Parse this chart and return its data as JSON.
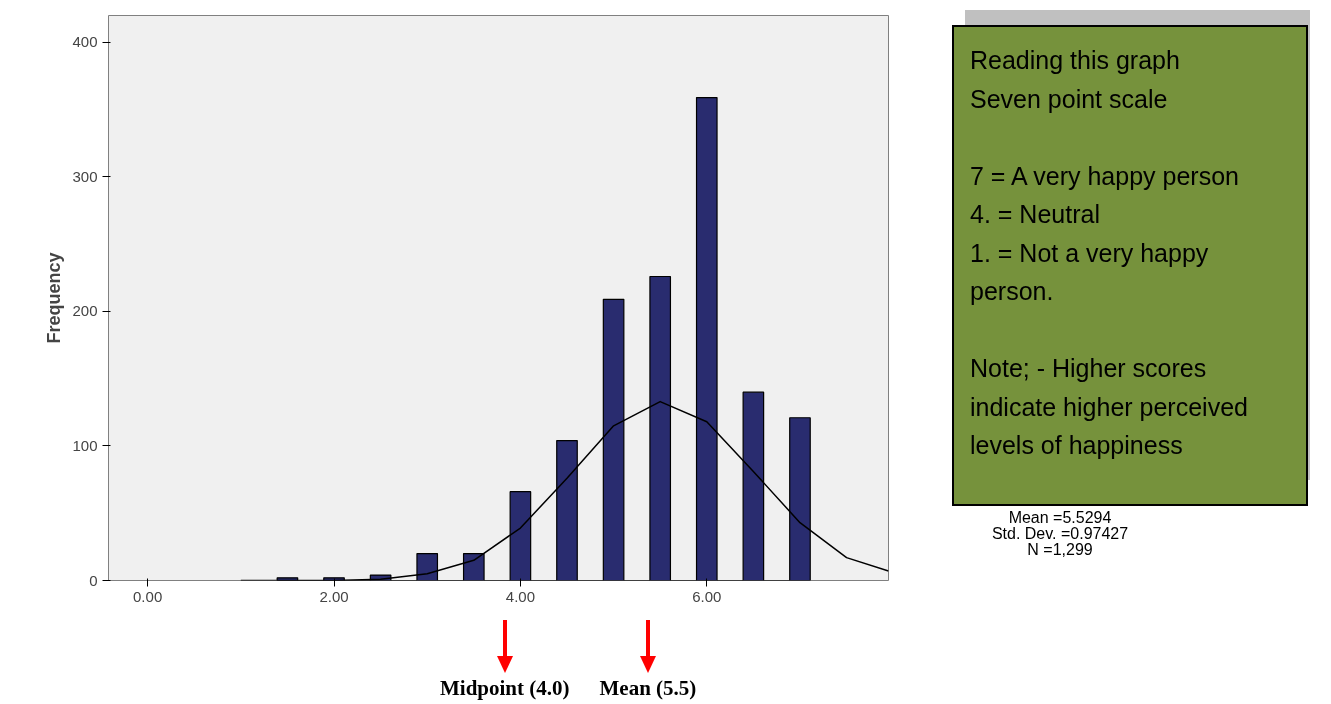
{
  "chart_data": {
    "type": "histogram",
    "ylabel": "Frequency",
    "bins": [
      1.39,
      1.61,
      1.89,
      2.11,
      2.39,
      2.61,
      2.89,
      3.11,
      3.39,
      3.61,
      3.89,
      4.11,
      4.39,
      4.61,
      4.89,
      5.11,
      5.39,
      5.61,
      5.89,
      6.11,
      6.39,
      6.61,
      6.89,
      7.11
    ],
    "values": [
      2,
      0,
      2,
      0,
      4,
      0,
      20,
      0,
      20,
      0,
      66,
      0,
      104,
      0,
      209,
      0,
      226,
      0,
      359,
      0,
      140,
      0,
      121
    ],
    "color": "#292c6f",
    "series": [
      {
        "type": "line",
        "color": "#000000",
        "x": [
          1.0,
          1.5,
          2.0,
          2.5,
          3.0,
          3.5,
          4.0,
          4.5,
          5.0,
          5.5,
          6.0,
          6.5,
          7.0,
          7.5,
          7.95
        ],
        "values": [
          0,
          0,
          0,
          1,
          5,
          15,
          39,
          76,
          115,
          133,
          118,
          81,
          43,
          17,
          7
        ]
      }
    ],
    "xlim": [
      -0.42,
      7.95
    ],
    "ylim": [
      0,
      420
    ],
    "xticks": [
      {
        "value": 0,
        "label": "0.00"
      },
      {
        "value": 2,
        "label": "2.00"
      },
      {
        "value": 4,
        "label": "4.00"
      },
      {
        "value": 6,
        "label": "6.00"
      }
    ],
    "yticks": [
      0,
      100,
      200,
      300,
      400
    ],
    "grid": false,
    "annotations": [
      "Midpoint (4.0)",
      "Mean (5.5)",
      "Reading this graph\nSeven point scale\n\n7 = A very happy person\n4. = Neutral\n1. = Not a very happy person.\n\nNote; - Higher scores indicate higher perceived levels of happiness",
      "Mean =5.5294\nStd. Dev. =0.97427\nN =1,299"
    ]
  }
}
